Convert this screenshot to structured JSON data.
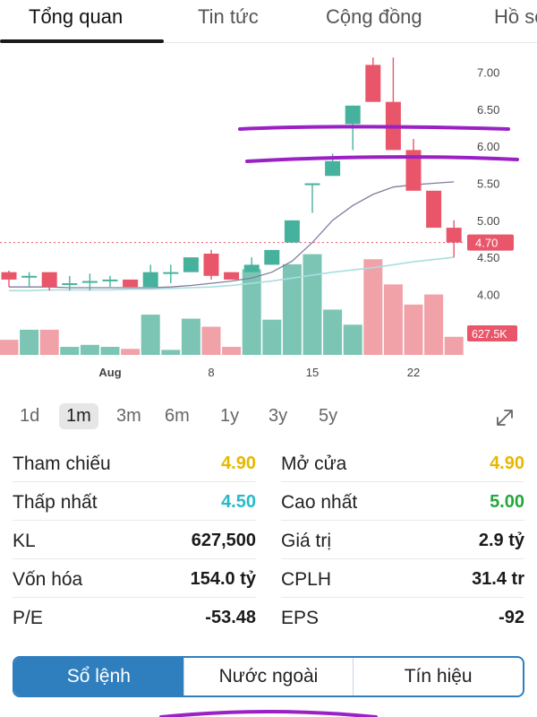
{
  "tabs": [
    {
      "label": "Tổng quan",
      "active": true
    },
    {
      "label": "Tin tức",
      "active": false
    },
    {
      "label": "Cộng đồng",
      "active": false
    },
    {
      "label": "Hồ sơ",
      "active": false
    }
  ],
  "colors": {
    "up": "#46b29d",
    "down": "#e9566a",
    "up_volume": "#7cc5b4",
    "down_volume": "#f1a1a8",
    "ma_long": "#7e7e9e",
    "ma_short": "#a9dde0",
    "annotation": "#9a22c4",
    "accent": "#2f7fbf",
    "ref_yellow": "#e6b800",
    "low_cyan": "#28b9c9",
    "high_green": "#22a83a"
  },
  "chart_data": {
    "type": "candlestick",
    "y_ticks": [
      "7.00",
      "6.50",
      "6.00",
      "5.50",
      "5.00",
      "4.50",
      "4.00"
    ],
    "ylim": [
      3.4,
      7.25
    ],
    "x_ticks": [
      {
        "label": "Aug",
        "index": 5
      },
      {
        "label": "8",
        "index": 10
      },
      {
        "label": "15",
        "index": 15
      },
      {
        "label": "22",
        "index": 20
      }
    ],
    "reference_price": 4.7,
    "price_badge": "4.70",
    "volume_badge": "627.5K",
    "volume_max": 1.05,
    "candles": [
      {
        "o": 4.3,
        "c": 4.2,
        "h": 4.32,
        "l": 4.1,
        "v": 0.15
      },
      {
        "o": 4.25,
        "c": 4.25,
        "h": 4.3,
        "l": 4.1,
        "v": 0.25
      },
      {
        "o": 4.3,
        "c": 4.1,
        "h": 4.3,
        "l": 4.05,
        "v": 0.25
      },
      {
        "o": 4.15,
        "c": 4.15,
        "h": 4.25,
        "l": 4.05,
        "v": 0.08
      },
      {
        "o": 4.18,
        "c": 4.18,
        "h": 4.28,
        "l": 4.05,
        "v": 0.1
      },
      {
        "o": 4.2,
        "c": 4.2,
        "h": 4.25,
        "l": 4.1,
        "v": 0.08
      },
      {
        "o": 4.2,
        "c": 4.1,
        "h": 4.2,
        "l": 4.1,
        "v": 0.06
      },
      {
        "o": 4.1,
        "c": 4.3,
        "h": 4.4,
        "l": 4.1,
        "v": 0.4
      },
      {
        "o": 4.3,
        "c": 4.3,
        "h": 4.4,
        "l": 4.15,
        "v": 0.05
      },
      {
        "o": 4.3,
        "c": 4.5,
        "h": 4.5,
        "l": 4.3,
        "v": 0.36
      },
      {
        "o": 4.55,
        "c": 4.25,
        "h": 4.6,
        "l": 4.2,
        "v": 0.28
      },
      {
        "o": 4.3,
        "c": 4.2,
        "h": 4.3,
        "l": 4.2,
        "v": 0.08
      },
      {
        "o": 4.3,
        "c": 4.4,
        "h": 4.5,
        "l": 4.3,
        "v": 0.85
      },
      {
        "o": 4.4,
        "c": 4.6,
        "h": 4.6,
        "l": 4.4,
        "v": 0.35
      },
      {
        "o": 4.7,
        "c": 5.0,
        "h": 5.0,
        "l": 4.7,
        "v": 0.9
      },
      {
        "o": 5.5,
        "c": 5.5,
        "h": 5.5,
        "l": 5.1,
        "v": 1.0
      },
      {
        "o": 5.6,
        "c": 5.8,
        "h": 5.9,
        "l": 5.6,
        "v": 0.45
      },
      {
        "o": 6.3,
        "c": 6.55,
        "h": 6.55,
        "l": 5.95,
        "v": 0.3
      },
      {
        "o": 7.1,
        "c": 6.6,
        "h": 7.2,
        "l": 6.6,
        "v": 0.95
      },
      {
        "o": 6.6,
        "c": 5.95,
        "h": 7.2,
        "l": 5.95,
        "v": 0.7
      },
      {
        "o": 5.95,
        "c": 5.4,
        "h": 6.1,
        "l": 5.4,
        "v": 0.5
      },
      {
        "o": 5.4,
        "c": 4.9,
        "h": 5.4,
        "l": 4.9,
        "v": 0.6
      },
      {
        "o": 4.9,
        "c": 4.7,
        "h": 5.0,
        "l": 4.5,
        "v": 0.18
      }
    ],
    "ma_long": [
      4.1,
      4.1,
      4.1,
      4.09,
      4.09,
      4.09,
      4.09,
      4.09,
      4.1,
      4.12,
      4.15,
      4.18,
      4.22,
      4.3,
      4.45,
      4.7,
      5.0,
      5.2,
      5.35,
      5.45,
      5.48,
      5.5,
      5.52
    ],
    "ma_short": [
      4.05,
      4.05,
      4.06,
      4.06,
      4.06,
      4.06,
      4.07,
      4.07,
      4.08,
      4.09,
      4.1,
      4.12,
      4.15,
      4.18,
      4.22,
      4.26,
      4.3,
      4.33,
      4.36,
      4.4,
      4.44,
      4.47,
      4.5
    ]
  },
  "ranges": [
    {
      "label": "1d",
      "active": false
    },
    {
      "label": "1m",
      "active": true
    },
    {
      "label": "3m",
      "active": false
    },
    {
      "label": "6m",
      "active": false
    },
    {
      "label": "1y",
      "active": false
    },
    {
      "label": "3y",
      "active": false
    },
    {
      "label": "5y",
      "active": false
    }
  ],
  "stats": [
    {
      "left_label": "Tham chiếu",
      "left_value": "4.90",
      "left_color": "#e6b800",
      "right_label": "Mở cửa",
      "right_value": "4.90",
      "right_color": "#e6b800"
    },
    {
      "left_label": "Thấp nhất",
      "left_value": "4.50",
      "left_color": "#28b9c9",
      "right_label": "Cao nhất",
      "right_value": "5.00",
      "right_color": "#22a83a"
    },
    {
      "left_label": "KL",
      "left_value": "627,500",
      "left_color": "#1a1a1a",
      "right_label": "Giá trị",
      "right_value": "2.9 tỷ",
      "right_color": "#1a1a1a"
    },
    {
      "left_label": "Vốn hóa",
      "left_value": "154.0 tỷ",
      "left_color": "#1a1a1a",
      "right_label": "CPLH",
      "right_value": "31.4 tr",
      "right_color": "#1a1a1a"
    },
    {
      "left_label": "P/E",
      "left_value": "-53.48",
      "left_color": "#1a1a1a",
      "right_label": "EPS",
      "right_value": "-92",
      "right_color": "#1a1a1a"
    }
  ],
  "segments": [
    {
      "label": "Sổ lệnh",
      "active": true
    },
    {
      "label": "Nước ngoài",
      "active": false
    },
    {
      "label": "Tín hiệu",
      "active": false
    }
  ]
}
